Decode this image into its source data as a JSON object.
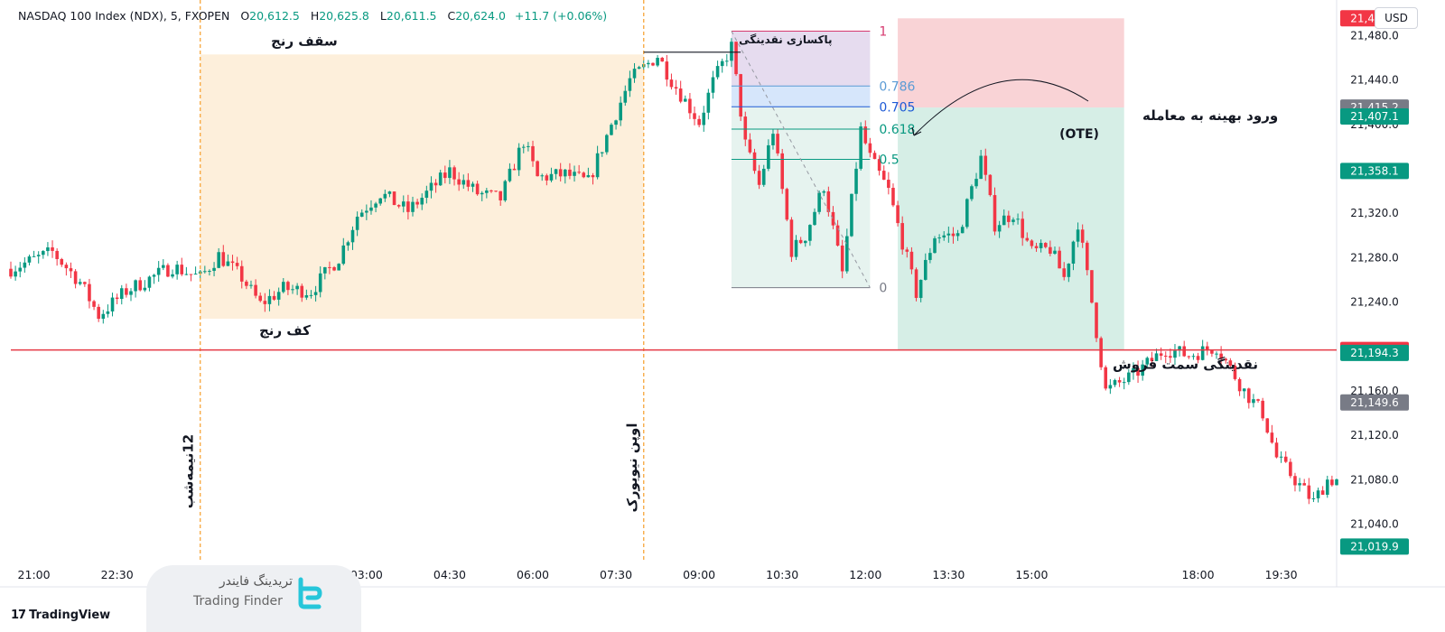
{
  "header": {
    "symbol": "NASDAQ 100 Index (NDX), 5, FXOPEN",
    "open_label": "O",
    "open": "20,612.5",
    "high_label": "H",
    "high": "20,625.8",
    "low_label": "L",
    "low": "20,611.5",
    "close_label": "C",
    "close": "20,624.0",
    "change": "+11.7 (+0.06%)"
  },
  "currency_button": "USD",
  "branding": {
    "tradingview": "TradingView",
    "watermark_fa": "تریدینگ فایندر",
    "watermark_en": "Trading Finder"
  },
  "colors": {
    "up": "#089981",
    "down": "#f23645",
    "range_box": "#fdefdb",
    "stop_zone": "#f9d3d6",
    "target_zone": "#d6eee6",
    "fib_zone": "#e6f3ef",
    "fib_top": "#e6dcef",
    "fib_ote": "#d6e6fb",
    "liquidity_line": "#e53945",
    "session_line": "#f7a63a"
  },
  "chart_data": {
    "type": "candlestick",
    "title": "",
    "y_range": [
      21008,
      21512
    ],
    "y_ticks": [
      21480,
      21440,
      21400,
      21360,
      21320,
      21280,
      21240,
      21200,
      21160,
      21120,
      21080,
      21040
    ],
    "y_tick_labels": [
      "21,480.0",
      "21,440.0",
      "21,400.0",
      "21,360.0",
      "21,320.0",
      "21,280.0",
      "21,240.0",
      "21,200.0",
      "21,160.0",
      "21,120.0",
      "21,080.0",
      "21,040.0"
    ],
    "x_time_range": [
      "2024-07-22 20:35",
      "2024-07-23 20:30"
    ],
    "x_ticks": [
      {
        "label": "21:00",
        "t": "2024-07-22 21:00"
      },
      {
        "label": "22:30",
        "t": "2024-07-22 22:30"
      },
      {
        "label": "03:00",
        "t": "2024-07-23 03:00"
      },
      {
        "label": "04:30",
        "t": "2024-07-23 04:30"
      },
      {
        "label": "06:00",
        "t": "2024-07-23 06:00"
      },
      {
        "label": "07:30",
        "t": "2024-07-23 07:30"
      },
      {
        "label": "09:00",
        "t": "2024-07-23 09:00"
      },
      {
        "label": "10:30",
        "t": "2024-07-23 10:30"
      },
      {
        "label": "12:00",
        "t": "2024-07-23 12:00"
      },
      {
        "label": "13:30",
        "t": "2024-07-23 13:30"
      },
      {
        "label": "15:00",
        "t": "2024-07-23 15:00"
      },
      {
        "label": "18:00",
        "t": "2024-07-23 18:00"
      },
      {
        "label": "19:30",
        "t": "2024-07-23 19:30"
      }
    ],
    "price_tags": [
      {
        "label": "21,495.5",
        "value": 21495.5,
        "color": "#f23645"
      },
      {
        "label": "21,415.2",
        "value": 21415.2,
        "color": "#787b86"
      },
      {
        "label": "21,407.1",
        "value": 21407.1,
        "color": "#089981"
      },
      {
        "label": "21,358.1",
        "value": 21358.1,
        "color": "#089981"
      },
      {
        "label": "21,196.9",
        "value": 21196.9,
        "color": "#f23645"
      },
      {
        "label": "21,194.3",
        "value": 21194.3,
        "color": "#089981"
      },
      {
        "label": "21,149.6",
        "value": 21149.6,
        "color": "#787b86"
      },
      {
        "label": "21,019.9",
        "value": 21019.9,
        "color": "#089981"
      }
    ],
    "anchors": [
      [
        "2024-07-22 20:35",
        21270
      ],
      [
        "2024-07-22 21:20",
        21285
      ],
      [
        "2024-07-22 21:50",
        21258
      ],
      [
        "2024-07-22 22:10",
        21228
      ],
      [
        "2024-07-22 22:40",
        21250
      ],
      [
        "2024-07-22 23:30",
        21272
      ],
      [
        "2024-07-23 00:00",
        21262
      ],
      [
        "2024-07-23 00:20",
        21282
      ],
      [
        "2024-07-23 00:45",
        21262
      ],
      [
        "2024-07-23 01:05",
        21238
      ],
      [
        "2024-07-23 01:30",
        21252
      ],
      [
        "2024-07-23 02:00",
        21250
      ],
      [
        "2024-07-23 02:30",
        21280
      ],
      [
        "2024-07-23 02:50",
        21318
      ],
      [
        "2024-07-23 03:15",
        21338
      ],
      [
        "2024-07-23 03:45",
        21322
      ],
      [
        "2024-07-23 04:30",
        21358
      ],
      [
        "2024-07-23 05:00",
        21338
      ],
      [
        "2024-07-23 05:25",
        21333
      ],
      [
        "2024-07-23 05:50",
        21385
      ],
      [
        "2024-07-23 06:05",
        21352
      ],
      [
        "2024-07-23 06:35",
        21355
      ],
      [
        "2024-07-23 07:00",
        21348
      ],
      [
        "2024-07-23 07:25",
        21400
      ],
      [
        "2024-07-23 07:45",
        21440
      ],
      [
        "2024-07-23 08:15",
        21462
      ],
      [
        "2024-07-23 08:30",
        21440
      ],
      [
        "2024-07-23 09:00",
        21402
      ],
      [
        "2024-07-23 09:15",
        21438
      ],
      [
        "2024-07-23 09:35",
        21470
      ],
      [
        "2024-07-23 09:50",
        21382
      ],
      [
        "2024-07-23 10:05",
        21345
      ],
      [
        "2024-07-23 10:20",
        21395
      ],
      [
        "2024-07-23 10:40",
        21286
      ],
      [
        "2024-07-23 10:55",
        21300
      ],
      [
        "2024-07-23 11:15",
        21345
      ],
      [
        "2024-07-23 11:35",
        21266
      ],
      [
        "2024-07-23 11:55",
        21395
      ],
      [
        "2024-07-23 12:05",
        21370
      ],
      [
        "2024-07-23 12:25",
        21340
      ],
      [
        "2024-07-23 12:55",
        21248
      ],
      [
        "2024-07-23 13:15",
        21300
      ],
      [
        "2024-07-23 13:40",
        21300
      ],
      [
        "2024-07-23 14:05",
        21370
      ],
      [
        "2024-07-23 14:20",
        21310
      ],
      [
        "2024-07-23 14:40",
        21320
      ],
      [
        "2024-07-23 15:00",
        21285
      ],
      [
        "2024-07-23 15:20",
        21288
      ],
      [
        "2024-07-23 15:35",
        21262
      ],
      [
        "2024-07-23 15:50",
        21312
      ],
      [
        "2024-07-23 16:05",
        21240
      ],
      [
        "2024-07-23 16:20",
        21160
      ],
      [
        "2024-07-23 16:50",
        21174
      ],
      [
        "2024-07-23 17:25",
        21198
      ],
      [
        "2024-07-23 17:50",
        21192
      ],
      [
        "2024-07-23 18:20",
        21200
      ],
      [
        "2024-07-23 18:50",
        21160
      ],
      [
        "2024-07-23 19:10",
        21140
      ],
      [
        "2024-07-23 19:25",
        21100
      ],
      [
        "2024-07-23 19:50",
        21075
      ],
      [
        "2024-07-23 20:05",
        21060
      ],
      [
        "2024-07-23 20:20",
        21080
      ]
    ],
    "annotations": {
      "session_lines": [
        {
          "label": "12نیمه‌شب",
          "t": "2024-07-23 00:00"
        },
        {
          "label": "اوپن نیویورک",
          "t": "2024-07-23 08:00"
        }
      ],
      "range_box": {
        "t1": "2024-07-23 00:00",
        "t2": "2024-07-23 08:00",
        "top": 21463,
        "bottom": 21225,
        "top_label": "سقف رنج",
        "bottom_label": "کف رنج"
      },
      "liquidity_sweep": {
        "label": "پاکسازی نقدینگی",
        "t1": "2024-07-23 08:00",
        "t2": "2024-07-23 09:45",
        "value": 21465
      },
      "fibonacci": {
        "t1": "2024-07-23 09:35",
        "t2": "2024-07-23 12:05",
        "high": 21484,
        "low": 21253,
        "levels": [
          {
            "label": "1",
            "ratio": 1,
            "color": "#d6396f"
          },
          {
            "label": "0.786",
            "ratio": 0.786,
            "color": "#5b9bd5"
          },
          {
            "label": "0.705",
            "ratio": 0.705,
            "color": "#1e5bd6"
          },
          {
            "label": "0.618",
            "ratio": 0.618,
            "color": "#089981"
          },
          {
            "label": "0.5",
            "ratio": 0.5,
            "color": "#089981"
          },
          {
            "label": "0",
            "ratio": 0,
            "color": "#787b86"
          }
        ]
      },
      "ote_label": "ورود بهینه به معامله",
      "ote_sub": "(OTE)",
      "sellside_liquidity": {
        "label": "نقدینگی سمت فروش",
        "value": 21196.9
      },
      "position": {
        "t1": "2024-07-23 12:35",
        "t2": "2024-07-23 16:40",
        "stop": 21495.5,
        "entry": 21415.2,
        "target": 21196.9
      }
    }
  }
}
